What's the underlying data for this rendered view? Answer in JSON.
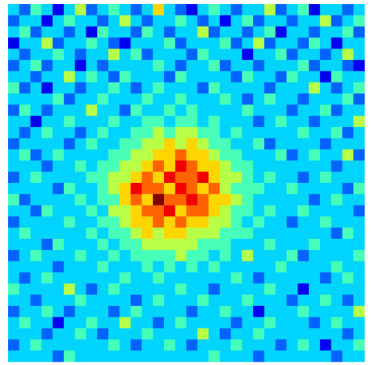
{
  "chart_data": {
    "type": "heatmap",
    "colormap": "jet",
    "zlim": [
      0,
      9
    ],
    "z": [
      [
        3,
        2,
        4,
        3,
        1,
        3,
        5,
        2,
        3,
        4,
        3,
        2,
        3,
        6,
        3,
        2,
        1,
        3,
        4,
        3,
        2,
        3,
        3,
        5,
        2,
        3,
        4,
        1,
        3,
        3,
        2,
        3
      ],
      [
        2,
        3,
        3,
        1,
        3,
        4,
        3,
        3,
        2,
        3,
        5,
        3,
        2,
        3,
        3,
        4,
        3,
        2,
        3,
        1,
        3,
        4,
        2,
        3,
        3,
        2,
        3,
        3,
        5,
        2,
        3,
        4
      ],
      [
        3,
        4,
        2,
        3,
        3,
        2,
        3,
        1,
        4,
        3,
        3,
        2,
        4,
        3,
        2,
        3,
        3,
        5,
        2,
        3,
        3,
        2,
        3,
        4,
        1,
        3,
        3,
        2,
        3,
        3,
        4,
        2
      ],
      [
        1,
        3,
        3,
        5,
        2,
        3,
        3,
        4,
        3,
        2,
        1,
        3,
        3,
        3,
        4,
        2,
        3,
        3,
        3,
        4,
        2,
        3,
        5,
        2,
        3,
        3,
        2,
        4,
        3,
        1,
        3,
        3
      ],
      [
        3,
        2,
        3,
        3,
        4,
        3,
        2,
        3,
        3,
        5,
        3,
        4,
        2,
        3,
        3,
        3,
        2,
        4,
        3,
        3,
        3,
        1,
        3,
        3,
        4,
        2,
        3,
        3,
        2,
        3,
        5,
        3
      ],
      [
        2,
        3,
        4,
        2,
        3,
        3,
        1,
        3,
        2,
        3,
        3,
        3,
        3,
        4,
        3,
        2,
        3,
        3,
        4,
        2,
        3,
        3,
        2,
        3,
        3,
        3,
        4,
        2,
        3,
        3,
        2,
        1
      ],
      [
        3,
        3,
        2,
        3,
        3,
        5,
        3,
        4,
        3,
        2,
        4,
        3,
        3,
        3,
        2,
        4,
        3,
        3,
        3,
        3,
        2,
        4,
        3,
        3,
        2,
        4,
        3,
        3,
        1,
        4,
        3,
        3
      ],
      [
        4,
        2,
        3,
        1,
        3,
        3,
        2,
        3,
        3,
        4,
        3,
        2,
        3,
        4,
        3,
        3,
        3,
        2,
        4,
        3,
        3,
        3,
        3,
        2,
        3,
        3,
        3,
        5,
        3,
        2,
        3,
        4
      ],
      [
        3,
        3,
        3,
        3,
        4,
        2,
        3,
        3,
        4,
        3,
        3,
        3,
        4,
        3,
        3,
        4,
        3,
        3,
        3,
        4,
        3,
        2,
        3,
        4,
        3,
        3,
        2,
        3,
        3,
        3,
        4,
        2
      ],
      [
        2,
        4,
        3,
        2,
        3,
        3,
        3,
        5,
        3,
        3,
        2,
        4,
        3,
        3,
        4,
        3,
        4,
        3,
        3,
        3,
        3,
        4,
        3,
        3,
        3,
        2,
        3,
        3,
        4,
        2,
        3,
        3
      ],
      [
        3,
        3,
        1,
        3,
        3,
        4,
        3,
        3,
        3,
        4,
        3,
        3,
        4,
        4,
        3,
        4,
        4,
        3,
        4,
        3,
        3,
        3,
        2,
        3,
        4,
        3,
        3,
        2,
        3,
        3,
        3,
        5
      ],
      [
        3,
        2,
        3,
        4,
        3,
        3,
        2,
        3,
        4,
        3,
        3,
        4,
        4,
        5,
        4,
        5,
        5,
        4,
        4,
        3,
        4,
        3,
        3,
        3,
        3,
        3,
        4,
        3,
        3,
        4,
        2,
        3
      ],
      [
        2,
        3,
        3,
        3,
        3,
        2,
        3,
        4,
        3,
        3,
        4,
        4,
        5,
        5,
        6,
        5,
        6,
        5,
        4,
        4,
        3,
        3,
        4,
        2,
        3,
        3,
        3,
        3,
        2,
        3,
        3,
        3
      ],
      [
        3,
        4,
        2,
        3,
        4,
        3,
        3,
        3,
        3,
        4,
        4,
        5,
        5,
        6,
        6,
        7,
        6,
        6,
        5,
        4,
        4,
        3,
        3,
        3,
        4,
        2,
        3,
        4,
        3,
        3,
        5,
        2
      ],
      [
        3,
        3,
        3,
        2,
        3,
        3,
        4,
        3,
        4,
        4,
        5,
        5,
        6,
        7,
        6,
        8,
        7,
        6,
        6,
        5,
        4,
        4,
        3,
        3,
        3,
        3,
        3,
        3,
        3,
        2,
        3,
        3
      ],
      [
        2,
        3,
        4,
        3,
        3,
        3,
        3,
        4,
        4,
        5,
        5,
        6,
        7,
        6,
        8,
        7,
        7,
        8,
        6,
        5,
        5,
        4,
        3,
        4,
        3,
        3,
        2,
        3,
        4,
        3,
        3,
        3
      ],
      [
        3,
        3,
        3,
        3,
        2,
        4,
        3,
        3,
        4,
        5,
        6,
        8,
        7,
        7,
        6,
        8,
        7,
        6,
        7,
        5,
        4,
        4,
        4,
        3,
        3,
        4,
        3,
        3,
        3,
        3,
        2,
        4
      ],
      [
        4,
        2,
        3,
        3,
        3,
        3,
        4,
        3,
        4,
        4,
        6,
        7,
        6,
        9,
        7,
        7,
        8,
        7,
        6,
        6,
        5,
        4,
        3,
        3,
        3,
        3,
        3,
        2,
        3,
        4,
        3,
        3
      ],
      [
        3,
        3,
        2,
        4,
        3,
        3,
        3,
        4,
        3,
        5,
        5,
        6,
        7,
        7,
        8,
        6,
        7,
        7,
        6,
        5,
        4,
        4,
        3,
        4,
        3,
        3,
        4,
        3,
        3,
        3,
        3,
        2
      ],
      [
        2,
        3,
        3,
        3,
        3,
        4,
        3,
        3,
        4,
        4,
        5,
        6,
        6,
        7,
        6,
        7,
        6,
        6,
        5,
        5,
        4,
        3,
        4,
        3,
        3,
        2,
        3,
        3,
        4,
        3,
        3,
        3
      ],
      [
        3,
        4,
        3,
        3,
        3,
        3,
        3,
        4,
        3,
        4,
        4,
        5,
        6,
        5,
        6,
        6,
        5,
        5,
        5,
        4,
        4,
        4,
        3,
        3,
        3,
        3,
        3,
        3,
        3,
        2,
        4,
        3
      ],
      [
        3,
        3,
        3,
        2,
        4,
        3,
        3,
        3,
        4,
        3,
        4,
        4,
        5,
        5,
        5,
        5,
        5,
        4,
        4,
        4,
        3,
        3,
        3,
        4,
        3,
        3,
        3,
        4,
        3,
        3,
        3,
        3
      ],
      [
        2,
        3,
        4,
        3,
        3,
        3,
        4,
        3,
        3,
        4,
        3,
        4,
        4,
        4,
        4,
        5,
        4,
        4,
        3,
        4,
        3,
        5,
        3,
        3,
        3,
        4,
        2,
        3,
        3,
        3,
        3,
        4
      ],
      [
        3,
        3,
        3,
        3,
        2,
        3,
        3,
        3,
        4,
        3,
        3,
        3,
        4,
        3,
        4,
        3,
        4,
        3,
        4,
        3,
        3,
        3,
        3,
        3,
        4,
        3,
        3,
        3,
        3,
        4,
        3,
        3
      ],
      [
        3,
        2,
        3,
        4,
        3,
        3,
        3,
        3,
        3,
        3,
        4,
        3,
        3,
        4,
        3,
        3,
        3,
        3,
        3,
        3,
        4,
        3,
        2,
        3,
        3,
        3,
        3,
        3,
        2,
        3,
        4,
        3
      ],
      [
        4,
        3,
        3,
        3,
        3,
        5,
        3,
        2,
        3,
        4,
        3,
        3,
        3,
        3,
        3,
        4,
        3,
        3,
        2,
        3,
        3,
        3,
        3,
        4,
        3,
        3,
        1,
        3,
        3,
        3,
        3,
        3
      ],
      [
        3,
        3,
        2,
        3,
        3,
        3,
        4,
        3,
        3,
        3,
        3,
        2,
        3,
        4,
        3,
        3,
        3,
        4,
        3,
        3,
        3,
        4,
        3,
        3,
        3,
        2,
        3,
        3,
        4,
        3,
        2,
        3
      ],
      [
        2,
        3,
        3,
        4,
        3,
        2,
        3,
        3,
        3,
        2,
        3,
        4,
        3,
        3,
        3,
        3,
        2,
        3,
        3,
        4,
        3,
        3,
        1,
        3,
        3,
        3,
        4,
        3,
        3,
        3,
        3,
        5
      ],
      [
        3,
        4,
        3,
        3,
        1,
        3,
        3,
        4,
        3,
        3,
        5,
        3,
        3,
        2,
        3,
        4,
        3,
        3,
        3,
        3,
        2,
        3,
        3,
        4,
        3,
        3,
        3,
        2,
        3,
        4,
        3,
        3
      ],
      [
        3,
        3,
        3,
        2,
        3,
        3,
        4,
        3,
        2,
        3,
        3,
        3,
        4,
        3,
        3,
        3,
        3,
        5,
        3,
        2,
        3,
        3,
        4,
        3,
        3,
        3,
        3,
        3,
        3,
        3,
        2,
        3
      ],
      [
        2,
        3,
        4,
        3,
        3,
        3,
        3,
        3,
        3,
        4,
        3,
        2,
        3,
        3,
        4,
        3,
        2,
        3,
        3,
        3,
        4,
        3,
        3,
        3,
        2,
        3,
        4,
        3,
        1,
        3,
        3,
        4
      ],
      [
        3,
        3,
        3,
        3,
        2,
        4,
        3,
        3,
        3,
        3,
        3,
        3,
        3,
        3,
        3,
        3,
        3,
        3,
        4,
        3,
        3,
        3,
        2,
        3,
        3,
        3,
        3,
        3,
        3,
        2,
        3,
        3
      ]
    ]
  }
}
